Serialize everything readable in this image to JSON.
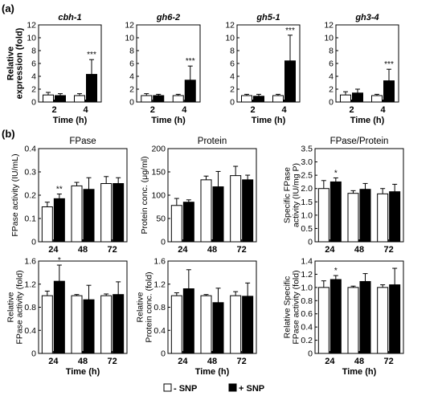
{
  "panel_a_label": "(a)",
  "panel_b_label": "(b)",
  "legend": {
    "white_label": "- SNP",
    "black_label": "+ SNP",
    "white_color": "#ffffff",
    "black_color": "#000000"
  },
  "chart_data": [
    {
      "type": "bar",
      "panel": "a",
      "title": "cbh-1",
      "categories": [
        "2",
        "4"
      ],
      "xlabel": "Time (h)",
      "ylabel": "Relative expression (fold)",
      "ylim": [
        0,
        12
      ],
      "yticks": [
        "0",
        "2",
        "4",
        "6",
        "8",
        "10",
        "12"
      ],
      "series": [
        {
          "name": "- SNP",
          "values": [
            1.1,
            1.0
          ],
          "errors": [
            0.4,
            0.3
          ]
        },
        {
          "name": "+ SNP",
          "values": [
            1.0,
            4.3
          ],
          "errors": [
            0.3,
            2.3
          ]
        }
      ],
      "annotations": [
        {
          "category": "4",
          "series": "+ SNP",
          "text": "***"
        }
      ]
    },
    {
      "type": "bar",
      "panel": "a",
      "title": "gh6-2",
      "categories": [
        "2",
        "4"
      ],
      "xlabel": "Time (h)",
      "ylabel": "",
      "ylim": [
        0,
        12
      ],
      "yticks": [
        "0",
        "2",
        "4",
        "6",
        "8",
        "10",
        "12"
      ],
      "series": [
        {
          "name": "- SNP",
          "values": [
            1.0,
            1.0
          ],
          "errors": [
            0.3,
            0.2
          ]
        },
        {
          "name": "+ SNP",
          "values": [
            1.0,
            3.4
          ],
          "errors": [
            0.2,
            2.2
          ]
        }
      ],
      "annotations": [
        {
          "category": "4",
          "series": "+ SNP",
          "text": "***"
        }
      ]
    },
    {
      "type": "bar",
      "panel": "a",
      "title": "gh5-1",
      "categories": [
        "2",
        "4"
      ],
      "xlabel": "Time (h)",
      "ylabel": "",
      "ylim": [
        0,
        12
      ],
      "yticks": [
        "0",
        "2",
        "4",
        "6",
        "8",
        "10",
        "12"
      ],
      "series": [
        {
          "name": "- SNP",
          "values": [
            1.0,
            1.0
          ],
          "errors": [
            0.2,
            0.2
          ]
        },
        {
          "name": "+ SNP",
          "values": [
            0.9,
            6.4
          ],
          "errors": [
            0.3,
            4.0
          ]
        }
      ],
      "annotations": [
        {
          "category": "4",
          "series": "+ SNP",
          "text": "***"
        }
      ]
    },
    {
      "type": "bar",
      "panel": "a",
      "title": "gh3-4",
      "categories": [
        "2",
        "4"
      ],
      "xlabel": "Time (h)",
      "ylabel": "",
      "ylim": [
        0,
        12
      ],
      "yticks": [
        "0",
        "2",
        "4",
        "6",
        "8",
        "10",
        "12"
      ],
      "series": [
        {
          "name": "- SNP",
          "values": [
            1.1,
            1.0
          ],
          "errors": [
            0.5,
            0.2
          ]
        },
        {
          "name": "+ SNP",
          "values": [
            1.4,
            3.3
          ],
          "errors": [
            0.6,
            1.8
          ]
        }
      ],
      "annotations": [
        {
          "category": "4",
          "series": "+ SNP",
          "text": "***"
        }
      ]
    },
    {
      "type": "bar",
      "panel": "b",
      "title": "FPase",
      "categories": [
        "24",
        "48",
        "72"
      ],
      "xlabel": "",
      "ylabel": "FPase activity (IU/mL)",
      "ylim": [
        0,
        0.4
      ],
      "yticks": [
        "0",
        "0.1",
        "0.2",
        "0.3",
        "0.4"
      ],
      "series": [
        {
          "name": "- SNP",
          "values": [
            0.15,
            0.24,
            0.25
          ],
          "errors": [
            0.02,
            0.015,
            0.03
          ]
        },
        {
          "name": "+ SNP",
          "values": [
            0.185,
            0.225,
            0.25
          ],
          "errors": [
            0.02,
            0.05,
            0.025
          ]
        }
      ],
      "annotations": [
        {
          "category": "24",
          "series": "+ SNP",
          "text": "**"
        }
      ]
    },
    {
      "type": "bar",
      "panel": "b",
      "title": "Protein",
      "categories": [
        "24",
        "48",
        "72"
      ],
      "xlabel": "",
      "ylabel": "Protein conc. (μg/ml)",
      "ylim": [
        0,
        200
      ],
      "yticks": [
        "0",
        "50",
        "100",
        "150",
        "200"
      ],
      "series": [
        {
          "name": "- SNP",
          "values": [
            78,
            133,
            142
          ],
          "errors": [
            15,
            8,
            20
          ]
        },
        {
          "name": "+ SNP",
          "values": [
            85,
            118,
            133
          ],
          "errors": [
            5,
            33,
            10
          ]
        }
      ],
      "annotations": []
    },
    {
      "type": "bar",
      "panel": "b",
      "title": "FPase/Protein",
      "categories": [
        "24",
        "48",
        "72"
      ],
      "xlabel": "",
      "ylabel": "Specific FPase activity (IU/mg P)",
      "ylim": [
        0,
        3.5
      ],
      "yticks": [
        "0",
        "0.5",
        "1.0",
        "1.5",
        "2.0",
        "2.5",
        "3.0",
        "3.5"
      ],
      "series": [
        {
          "name": "- SNP",
          "values": [
            2.0,
            1.82,
            1.8
          ],
          "errors": [
            0.3,
            0.1,
            0.2
          ]
        },
        {
          "name": "+ SNP",
          "values": [
            2.25,
            1.97,
            1.88
          ],
          "errors": [
            0.15,
            0.22,
            0.28
          ]
        }
      ],
      "annotations": [
        {
          "category": "24",
          "series": "+ SNP",
          "text": "*"
        }
      ]
    },
    {
      "type": "bar",
      "panel": "b",
      "title": "",
      "categories": [
        "24",
        "48",
        "72"
      ],
      "xlabel": "Time (h)",
      "ylabel": "Relative FPase activity (fold)",
      "ylim": [
        0,
        1.6
      ],
      "yticks": [
        "0",
        "0.4",
        "0.8",
        "1.2",
        "1.6"
      ],
      "series": [
        {
          "name": "- SNP",
          "values": [
            1.0,
            1.0,
            1.0
          ],
          "errors": [
            0.08,
            0.02,
            0.03
          ]
        },
        {
          "name": "+ SNP",
          "values": [
            1.25,
            0.93,
            1.02
          ],
          "errors": [
            0.28,
            0.25,
            0.22
          ]
        }
      ],
      "annotations": [
        {
          "category": "24",
          "series": "+ SNP",
          "text": "*"
        }
      ]
    },
    {
      "type": "bar",
      "panel": "b",
      "title": "",
      "categories": [
        "24",
        "48",
        "72"
      ],
      "xlabel": "Time (h)",
      "ylabel": "Relative Protein conc. (fold)",
      "ylim": [
        0,
        1.6
      ],
      "yticks": [
        "0",
        "0.4",
        "0.8",
        "1.2",
        "1.6"
      ],
      "series": [
        {
          "name": "- SNP",
          "values": [
            1.0,
            1.0,
            1.0
          ],
          "errors": [
            0.05,
            0.02,
            0.07
          ]
        },
        {
          "name": "+ SNP",
          "values": [
            1.12,
            0.88,
            0.99
          ],
          "errors": [
            0.33,
            0.25,
            0.23
          ]
        }
      ],
      "annotations": []
    },
    {
      "type": "bar",
      "panel": "b",
      "title": "",
      "categories": [
        "24",
        "48",
        "72"
      ],
      "xlabel": "Time (h)",
      "ylabel": "Relative Specific FPase activity (fold)",
      "ylim": [
        0,
        1.4
      ],
      "yticks": [
        "0",
        "0.2",
        "0.4",
        "0.6",
        "0.8",
        "1.0",
        "1.2",
        "1.4"
      ],
      "series": [
        {
          "name": "- SNP",
          "values": [
            1.0,
            1.0,
            1.0
          ],
          "errors": [
            0.1,
            0.02,
            0.04
          ]
        },
        {
          "name": "+ SNP",
          "values": [
            1.12,
            1.09,
            1.04
          ],
          "errors": [
            0.06,
            0.12,
            0.25
          ]
        }
      ],
      "annotations": [
        {
          "category": "24",
          "series": "+ SNP",
          "text": "*"
        }
      ]
    }
  ]
}
